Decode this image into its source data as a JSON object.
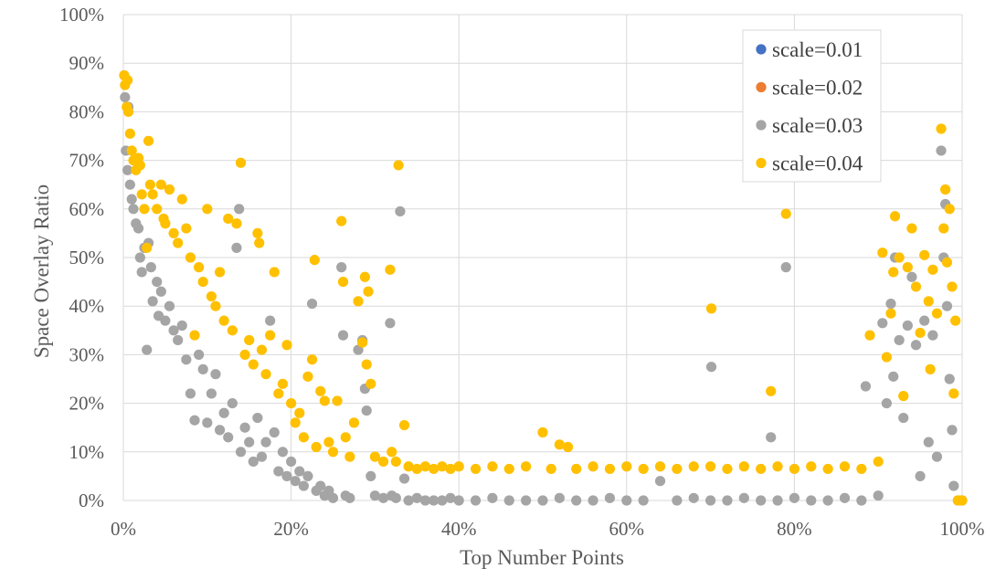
{
  "chart_data": {
    "type": "scatter",
    "title": "",
    "xlabel": "Top Number Points",
    "ylabel": "Space Overlay Ratio",
    "xlim": [
      0,
      1
    ],
    "ylim": [
      0,
      1
    ],
    "x_ticks": [
      "0%",
      "20%",
      "40%",
      "60%",
      "80%",
      "100%"
    ],
    "y_ticks": [
      "0%",
      "10%",
      "20%",
      "30%",
      "40%",
      "50%",
      "60%",
      "70%",
      "80%",
      "90%",
      "100%"
    ],
    "grid": true,
    "legend_position": "top-right",
    "series": [
      {
        "name": "scale=0.01",
        "color": "#4472c4",
        "points": []
      },
      {
        "name": "scale=0.02",
        "color": "#ed7d31",
        "points": []
      },
      {
        "name": "scale=0.03",
        "color": "#a5a5a5",
        "points": [
          [
            0.002,
            0.83
          ],
          [
            0.003,
            0.72
          ],
          [
            0.005,
            0.68
          ],
          [
            0.006,
            0.81
          ],
          [
            0.008,
            0.65
          ],
          [
            0.01,
            0.62
          ],
          [
            0.012,
            0.6
          ],
          [
            0.015,
            0.57
          ],
          [
            0.018,
            0.56
          ],
          [
            0.02,
            0.5
          ],
          [
            0.022,
            0.47
          ],
          [
            0.025,
            0.52
          ],
          [
            0.028,
            0.31
          ],
          [
            0.03,
            0.53
          ],
          [
            0.033,
            0.48
          ],
          [
            0.035,
            0.41
          ],
          [
            0.04,
            0.45
          ],
          [
            0.042,
            0.38
          ],
          [
            0.045,
            0.43
          ],
          [
            0.05,
            0.37
          ],
          [
            0.055,
            0.4
          ],
          [
            0.06,
            0.35
          ],
          [
            0.065,
            0.33
          ],
          [
            0.07,
            0.36
          ],
          [
            0.075,
            0.29
          ],
          [
            0.08,
            0.22
          ],
          [
            0.085,
            0.165
          ],
          [
            0.09,
            0.3
          ],
          [
            0.095,
            0.27
          ],
          [
            0.1,
            0.16
          ],
          [
            0.105,
            0.22
          ],
          [
            0.11,
            0.26
          ],
          [
            0.115,
            0.145
          ],
          [
            0.12,
            0.18
          ],
          [
            0.125,
            0.13
          ],
          [
            0.13,
            0.2
          ],
          [
            0.135,
            0.52
          ],
          [
            0.138,
            0.6
          ],
          [
            0.14,
            0.1
          ],
          [
            0.145,
            0.15
          ],
          [
            0.15,
            0.12
          ],
          [
            0.155,
            0.08
          ],
          [
            0.16,
            0.17
          ],
          [
            0.165,
            0.09
          ],
          [
            0.17,
            0.12
          ],
          [
            0.175,
            0.37
          ],
          [
            0.18,
            0.14
          ],
          [
            0.185,
            0.06
          ],
          [
            0.19,
            0.1
          ],
          [
            0.195,
            0.05
          ],
          [
            0.2,
            0.08
          ],
          [
            0.205,
            0.04
          ],
          [
            0.21,
            0.06
          ],
          [
            0.215,
            0.03
          ],
          [
            0.22,
            0.05
          ],
          [
            0.225,
            0.405
          ],
          [
            0.23,
            0.02
          ],
          [
            0.235,
            0.03
          ],
          [
            0.24,
            0.01
          ],
          [
            0.245,
            0.02
          ],
          [
            0.25,
            0.005
          ],
          [
            0.26,
            0.48
          ],
          [
            0.262,
            0.34
          ],
          [
            0.265,
            0.01
          ],
          [
            0.27,
            0.005
          ],
          [
            0.28,
            0.31
          ],
          [
            0.285,
            0.33
          ],
          [
            0.288,
            0.23
          ],
          [
            0.29,
            0.185
          ],
          [
            0.295,
            0.05
          ],
          [
            0.3,
            0.01
          ],
          [
            0.31,
            0.005
          ],
          [
            0.318,
            0.365
          ],
          [
            0.32,
            0.01
          ],
          [
            0.325,
            0.005
          ],
          [
            0.33,
            0.595
          ],
          [
            0.335,
            0.045
          ],
          [
            0.34,
            0.0
          ],
          [
            0.35,
            0.005
          ],
          [
            0.36,
            0.0
          ],
          [
            0.37,
            0.0
          ],
          [
            0.38,
            0.0
          ],
          [
            0.39,
            0.005
          ],
          [
            0.4,
            0.0
          ],
          [
            0.42,
            0.0
          ],
          [
            0.44,
            0.005
          ],
          [
            0.46,
            0.0
          ],
          [
            0.48,
            0.0
          ],
          [
            0.5,
            0.0
          ],
          [
            0.52,
            0.005
          ],
          [
            0.54,
            0.0
          ],
          [
            0.56,
            0.0
          ],
          [
            0.58,
            0.005
          ],
          [
            0.6,
            0.0
          ],
          [
            0.62,
            0.0
          ],
          [
            0.64,
            0.04
          ],
          [
            0.66,
            0.0
          ],
          [
            0.68,
            0.005
          ],
          [
            0.7,
            0.0
          ],
          [
            0.701,
            0.275
          ],
          [
            0.72,
            0.0
          ],
          [
            0.74,
            0.005
          ],
          [
            0.76,
            0.0
          ],
          [
            0.772,
            0.13
          ],
          [
            0.78,
            0.0
          ],
          [
            0.79,
            0.48
          ],
          [
            0.8,
            0.005
          ],
          [
            0.82,
            0.0
          ],
          [
            0.84,
            0.0
          ],
          [
            0.86,
            0.005
          ],
          [
            0.88,
            0.0
          ],
          [
            0.885,
            0.235
          ],
          [
            0.9,
            0.01
          ],
          [
            0.905,
            0.365
          ],
          [
            0.91,
            0.2
          ],
          [
            0.915,
            0.405
          ],
          [
            0.918,
            0.255
          ],
          [
            0.92,
            0.5
          ],
          [
            0.925,
            0.33
          ],
          [
            0.93,
            0.17
          ],
          [
            0.935,
            0.36
          ],
          [
            0.94,
            0.46
          ],
          [
            0.945,
            0.32
          ],
          [
            0.95,
            0.05
          ],
          [
            0.955,
            0.37
          ],
          [
            0.96,
            0.12
          ],
          [
            0.965,
            0.34
          ],
          [
            0.97,
            0.09
          ],
          [
            0.975,
            0.72
          ],
          [
            0.978,
            0.5
          ],
          [
            0.98,
            0.61
          ],
          [
            0.982,
            0.4
          ],
          [
            0.985,
            0.25
          ],
          [
            0.988,
            0.145
          ],
          [
            0.99,
            0.03
          ],
          [
            0.995,
            0.0
          ],
          [
            1.0,
            0.0
          ]
        ]
      },
      {
        "name": "scale=0.04",
        "color": "#ffc000",
        "points": [
          [
            0.001,
            0.875
          ],
          [
            0.002,
            0.855
          ],
          [
            0.004,
            0.81
          ],
          [
            0.005,
            0.865
          ],
          [
            0.006,
            0.8
          ],
          [
            0.008,
            0.755
          ],
          [
            0.01,
            0.72
          ],
          [
            0.012,
            0.7
          ],
          [
            0.015,
            0.68
          ],
          [
            0.018,
            0.705
          ],
          [
            0.02,
            0.69
          ],
          [
            0.022,
            0.63
          ],
          [
            0.025,
            0.6
          ],
          [
            0.028,
            0.52
          ],
          [
            0.03,
            0.74
          ],
          [
            0.032,
            0.65
          ],
          [
            0.035,
            0.63
          ],
          [
            0.04,
            0.6
          ],
          [
            0.045,
            0.65
          ],
          [
            0.048,
            0.58
          ],
          [
            0.05,
            0.57
          ],
          [
            0.055,
            0.64
          ],
          [
            0.06,
            0.55
          ],
          [
            0.065,
            0.53
          ],
          [
            0.07,
            0.62
          ],
          [
            0.075,
            0.56
          ],
          [
            0.08,
            0.5
          ],
          [
            0.085,
            0.34
          ],
          [
            0.09,
            0.48
          ],
          [
            0.095,
            0.45
          ],
          [
            0.1,
            0.6
          ],
          [
            0.105,
            0.42
          ],
          [
            0.11,
            0.4
          ],
          [
            0.115,
            0.47
          ],
          [
            0.12,
            0.37
          ],
          [
            0.125,
            0.58
          ],
          [
            0.13,
            0.35
          ],
          [
            0.135,
            0.57
          ],
          [
            0.14,
            0.695
          ],
          [
            0.145,
            0.3
          ],
          [
            0.15,
            0.33
          ],
          [
            0.155,
            0.28
          ],
          [
            0.16,
            0.55
          ],
          [
            0.162,
            0.53
          ],
          [
            0.165,
            0.31
          ],
          [
            0.17,
            0.26
          ],
          [
            0.175,
            0.34
          ],
          [
            0.18,
            0.47
          ],
          [
            0.185,
            0.22
          ],
          [
            0.19,
            0.24
          ],
          [
            0.195,
            0.32
          ],
          [
            0.2,
            0.2
          ],
          [
            0.205,
            0.16
          ],
          [
            0.21,
            0.18
          ],
          [
            0.215,
            0.13
          ],
          [
            0.22,
            0.255
          ],
          [
            0.225,
            0.29
          ],
          [
            0.228,
            0.495
          ],
          [
            0.23,
            0.11
          ],
          [
            0.235,
            0.225
          ],
          [
            0.24,
            0.205
          ],
          [
            0.245,
            0.12
          ],
          [
            0.25,
            0.1
          ],
          [
            0.255,
            0.205
          ],
          [
            0.26,
            0.575
          ],
          [
            0.262,
            0.45
          ],
          [
            0.265,
            0.13
          ],
          [
            0.27,
            0.09
          ],
          [
            0.275,
            0.16
          ],
          [
            0.28,
            0.41
          ],
          [
            0.285,
            0.325
          ],
          [
            0.288,
            0.46
          ],
          [
            0.29,
            0.28
          ],
          [
            0.292,
            0.43
          ],
          [
            0.295,
            0.24
          ],
          [
            0.3,
            0.09
          ],
          [
            0.31,
            0.08
          ],
          [
            0.318,
            0.475
          ],
          [
            0.32,
            0.1
          ],
          [
            0.325,
            0.08
          ],
          [
            0.328,
            0.69
          ],
          [
            0.335,
            0.155
          ],
          [
            0.34,
            0.07
          ],
          [
            0.35,
            0.065
          ],
          [
            0.36,
            0.07
          ],
          [
            0.37,
            0.065
          ],
          [
            0.38,
            0.07
          ],
          [
            0.39,
            0.065
          ],
          [
            0.4,
            0.07
          ],
          [
            0.42,
            0.065
          ],
          [
            0.44,
            0.07
          ],
          [
            0.46,
            0.065
          ],
          [
            0.48,
            0.07
          ],
          [
            0.5,
            0.14
          ],
          [
            0.51,
            0.065
          ],
          [
            0.52,
            0.115
          ],
          [
            0.53,
            0.11
          ],
          [
            0.54,
            0.065
          ],
          [
            0.56,
            0.07
          ],
          [
            0.58,
            0.065
          ],
          [
            0.6,
            0.07
          ],
          [
            0.62,
            0.065
          ],
          [
            0.64,
            0.07
          ],
          [
            0.66,
            0.065
          ],
          [
            0.68,
            0.07
          ],
          [
            0.7,
            0.07
          ],
          [
            0.701,
            0.395
          ],
          [
            0.72,
            0.065
          ],
          [
            0.74,
            0.07
          ],
          [
            0.76,
            0.065
          ],
          [
            0.772,
            0.225
          ],
          [
            0.78,
            0.07
          ],
          [
            0.79,
            0.59
          ],
          [
            0.8,
            0.065
          ],
          [
            0.82,
            0.07
          ],
          [
            0.84,
            0.065
          ],
          [
            0.86,
            0.07
          ],
          [
            0.88,
            0.065
          ],
          [
            0.89,
            0.34
          ],
          [
            0.9,
            0.08
          ],
          [
            0.905,
            0.51
          ],
          [
            0.91,
            0.295
          ],
          [
            0.915,
            0.385
          ],
          [
            0.918,
            0.47
          ],
          [
            0.92,
            0.585
          ],
          [
            0.925,
            0.5
          ],
          [
            0.93,
            0.215
          ],
          [
            0.935,
            0.48
          ],
          [
            0.94,
            0.56
          ],
          [
            0.945,
            0.44
          ],
          [
            0.95,
            0.345
          ],
          [
            0.955,
            0.505
          ],
          [
            0.96,
            0.41
          ],
          [
            0.962,
            0.27
          ],
          [
            0.965,
            0.475
          ],
          [
            0.97,
            0.385
          ],
          [
            0.975,
            0.765
          ],
          [
            0.978,
            0.56
          ],
          [
            0.98,
            0.64
          ],
          [
            0.982,
            0.49
          ],
          [
            0.985,
            0.6
          ],
          [
            0.988,
            0.44
          ],
          [
            0.99,
            0.22
          ],
          [
            0.992,
            0.37
          ],
          [
            0.995,
            0.0
          ],
          [
            0.998,
            0.0
          ],
          [
            1.0,
            0.0
          ]
        ]
      }
    ]
  }
}
